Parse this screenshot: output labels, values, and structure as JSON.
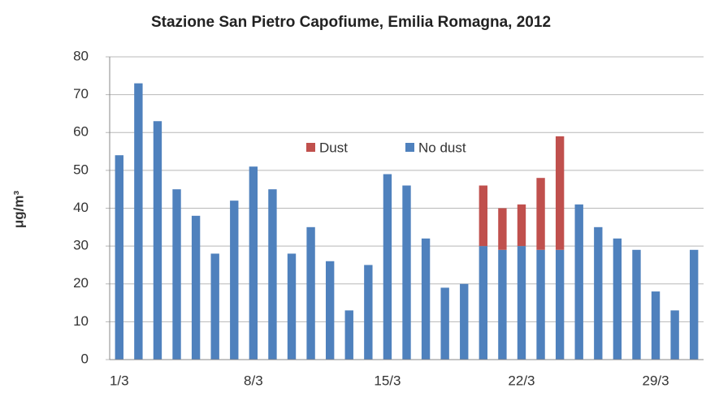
{
  "chart_data": {
    "type": "stacked_bar",
    "title": "Stazione San Pietro Capofiume, Emilia Romagna, 2012",
    "y_label": "μg/m³",
    "categories": [
      "1/3",
      null,
      null,
      null,
      null,
      null,
      null,
      "8/3",
      null,
      null,
      null,
      null,
      null,
      null,
      "15/3",
      null,
      null,
      null,
      null,
      null,
      null,
      "22/3",
      null,
      null,
      null,
      null,
      null,
      null,
      "29/3",
      null,
      null
    ],
    "series": [
      {
        "name": "Dust",
        "color": "#c0504d",
        "values": [
          null,
          null,
          null,
          null,
          null,
          null,
          null,
          null,
          null,
          null,
          null,
          null,
          null,
          null,
          null,
          null,
          null,
          null,
          null,
          16,
          11,
          11,
          19,
          30,
          null,
          null,
          null,
          null,
          null,
          null,
          null
        ]
      },
      {
        "name": "No dust",
        "color": "#4f81bd",
        "values": [
          54,
          73,
          63,
          45,
          38,
          28,
          42,
          51,
          45,
          28,
          35,
          26,
          13,
          25,
          49,
          46,
          32,
          19,
          20,
          30,
          29,
          30,
          29,
          29,
          41,
          35,
          32,
          29,
          18,
          13,
          29
        ]
      }
    ],
    "ylim": [
      0,
      80
    ],
    "yticks": [
      0,
      10,
      20,
      30,
      40,
      50,
      60,
      70,
      80
    ],
    "grid": true
  }
}
